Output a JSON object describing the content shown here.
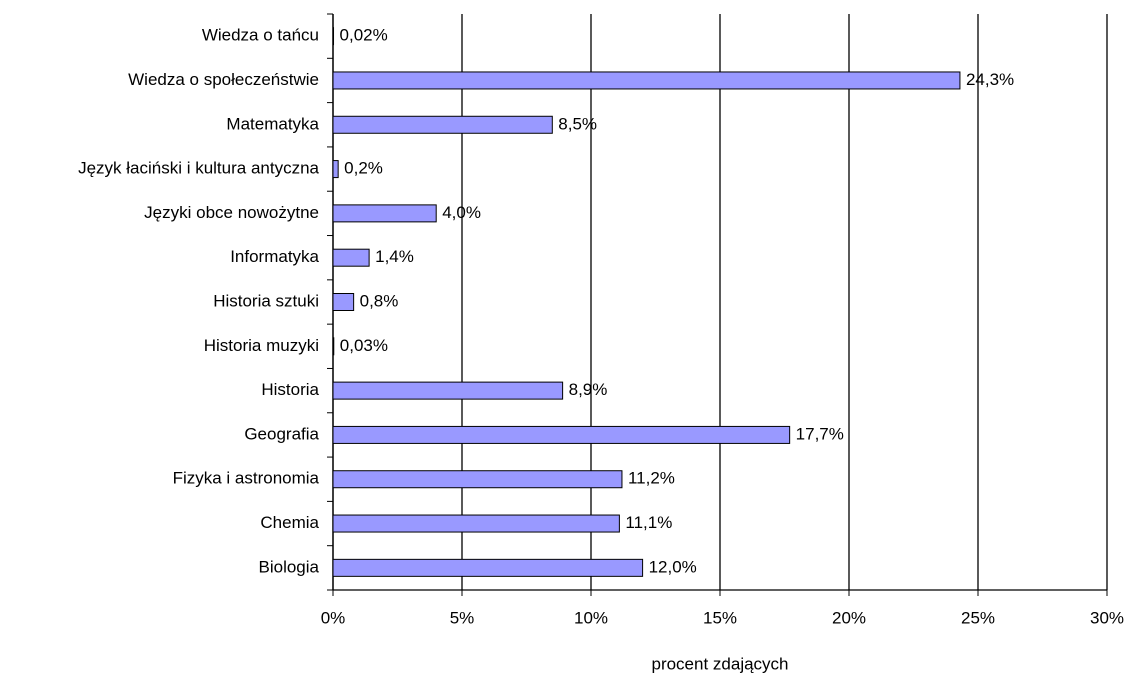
{
  "chart_data": {
    "type": "bar",
    "orientation": "horizontal",
    "x_label": "procent zdających",
    "categories": [
      "Wiedza o tańcu",
      "Wiedza o społeczeństwie",
      "Matematyka",
      "Język łaciński i kultura antyczna",
      "Języki obce nowożytne",
      "Informatyka",
      "Historia sztuki",
      "Historia muzyki",
      "Historia",
      "Geografia",
      "Fizyka i astronomia",
      "Chemia",
      "Biologia"
    ],
    "values": [
      0.02,
      24.3,
      8.5,
      0.2,
      4.0,
      1.4,
      0.8,
      0.03,
      8.9,
      17.7,
      11.2,
      11.1,
      12.0
    ],
    "value_labels": [
      "0,02%",
      "24,3%",
      "8,5%",
      "0,2%",
      "4,0%",
      "1,4%",
      "0,8%",
      "0,03%",
      "8,9%",
      "17,7%",
      "11,2%",
      "11,1%",
      "12,0%"
    ],
    "color": "#9999ff",
    "xlim": [
      0,
      30
    ],
    "xticks": [
      {
        "value": 0,
        "label": "0%"
      },
      {
        "value": 5,
        "label": "5%"
      },
      {
        "value": 10,
        "label": "10%"
      },
      {
        "value": 15,
        "label": "15%"
      },
      {
        "value": 20,
        "label": "20%"
      },
      {
        "value": 25,
        "label": "25%"
      },
      {
        "value": 30,
        "label": "30%"
      }
    ],
    "grid": true
  }
}
